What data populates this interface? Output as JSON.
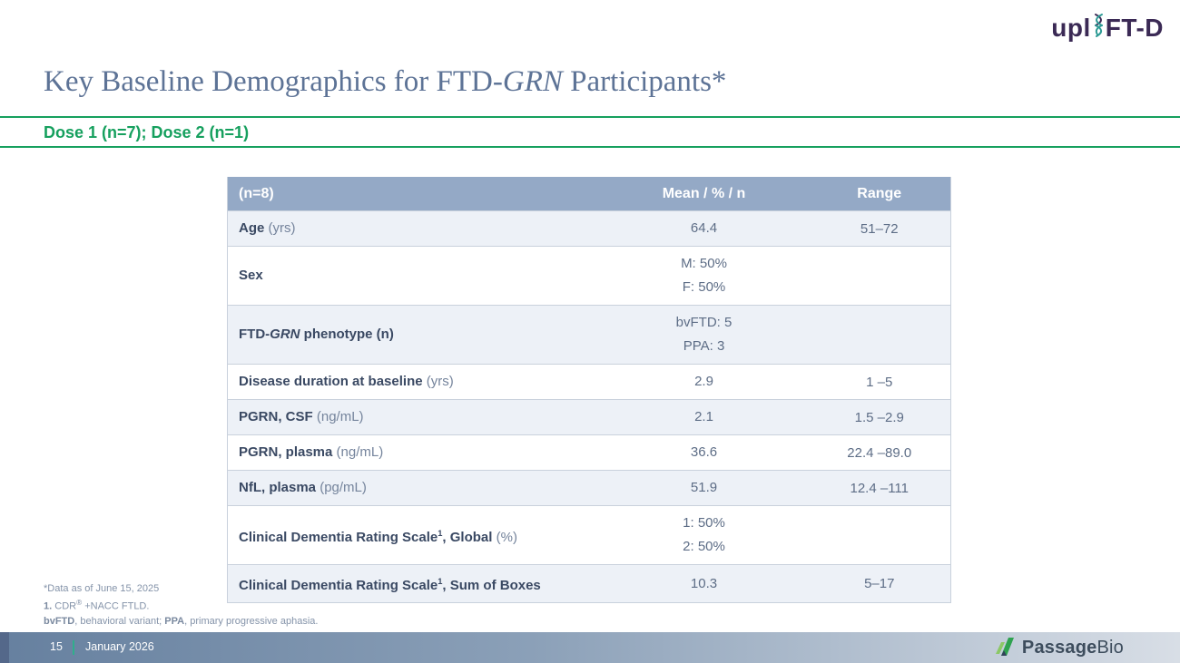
{
  "logo_top_right": {
    "part1": "upl",
    "part2": "FT-D",
    "icon": "dna-helix-icon"
  },
  "title": {
    "prefix": "Key Baseline Demographics for FTD-",
    "italic": "GRN",
    "suffix": " Participants*"
  },
  "subtitle": "Dose 1 (n=7); Dose 2 (n=1)",
  "table": {
    "headers": [
      "(n=8)",
      "Mean / % / n",
      "Range"
    ],
    "rows": [
      {
        "label": [
          {
            "t": "Age",
            "b": true
          },
          {
            "t": " (yrs)"
          }
        ],
        "mean": [
          "64.4"
        ],
        "range": "51–72"
      },
      {
        "label": [
          {
            "t": "Sex",
            "b": true
          }
        ],
        "mean": [
          "M: 50%",
          "F: 50%"
        ],
        "range": ""
      },
      {
        "label": [
          {
            "t": "FTD-",
            "b": true
          },
          {
            "t": "GRN",
            "b": true,
            "i": true
          },
          {
            "t": " phenotype (n)",
            "b": true
          }
        ],
        "mean": [
          "bvFTD: 5",
          "PPA: 3"
        ],
        "range": ""
      },
      {
        "label": [
          {
            "t": "Disease duration at baseline",
            "b": true
          },
          {
            "t": " (yrs)"
          }
        ],
        "mean": [
          "2.9"
        ],
        "range": "1 –5"
      },
      {
        "label": [
          {
            "t": "PGRN, CSF",
            "b": true
          },
          {
            "t": " (ng/mL)"
          }
        ],
        "mean": [
          "2.1"
        ],
        "range": "1.5 –2.9"
      },
      {
        "label": [
          {
            "t": "PGRN, plasma",
            "b": true
          },
          {
            "t": " (ng/mL)"
          }
        ],
        "mean": [
          "36.6"
        ],
        "range": "22.4 –89.0"
      },
      {
        "label": [
          {
            "t": "NfL, plasma",
            "b": true
          },
          {
            "t": " (pg/mL)"
          }
        ],
        "mean": [
          "51.9"
        ],
        "range": "12.4 –111"
      },
      {
        "label": [
          {
            "t": "Clinical Dementia Rating Scale",
            "b": true
          },
          {
            "t": "1",
            "b": true,
            "sup": true
          },
          {
            "t": ", Global",
            "b": true
          },
          {
            "t": " (%)"
          }
        ],
        "mean": [
          "1: 50%",
          "2: 50%"
        ],
        "range": ""
      },
      {
        "label": [
          {
            "t": "Clinical Dementia Rating Scale",
            "b": true
          },
          {
            "t": "1",
            "b": true,
            "sup": true
          },
          {
            "t": ", Sum of Boxes",
            "b": true
          }
        ],
        "mean": [
          "10.3"
        ],
        "range": "5–17"
      }
    ]
  },
  "chart_data": {
    "type": "table",
    "title": "Key Baseline Demographics for FTD-GRN Participants",
    "columns": [
      "(n=8)",
      "Mean / % / n",
      "Range"
    ],
    "rows": [
      [
        "Age (yrs)",
        "64.4",
        "51–72"
      ],
      [
        "Sex",
        "M: 50%; F: 50%",
        ""
      ],
      [
        "FTD-GRN phenotype (n)",
        "bvFTD: 5; PPA: 3",
        ""
      ],
      [
        "Disease duration at baseline (yrs)",
        "2.9",
        "1 –5"
      ],
      [
        "PGRN, CSF (ng/mL)",
        "2.1",
        "1.5 –2.9"
      ],
      [
        "PGRN, plasma (ng/mL)",
        "36.6",
        "22.4 –89.0"
      ],
      [
        "NfL, plasma (pg/mL)",
        "51.9",
        "12.4 –111"
      ],
      [
        "Clinical Dementia Rating Scale1, Global (%)",
        "1: 50%; 2: 50%",
        ""
      ],
      [
        "Clinical Dementia Rating Scale1, Sum of Boxes",
        "10.3",
        "5–17"
      ]
    ]
  },
  "footnotes": [
    [
      {
        "t": "*Data as of June 15, 2025"
      }
    ],
    [
      {
        "t": "1.",
        "b": true
      },
      {
        "t": " CDR"
      },
      {
        "t": "®",
        "sup": true
      },
      {
        "t": " +NACC FTLD."
      }
    ],
    [
      {
        "t": "bvFTD",
        "b": true
      },
      {
        "t": ", behavioral variant; "
      },
      {
        "t": "PPA",
        "b": true
      },
      {
        "t": ", primary progressive aphasia."
      }
    ]
  ],
  "footer": {
    "page_number": "15",
    "date": "January 2026",
    "brand_bold": "Passage",
    "brand_regular": "Bio"
  },
  "colors": {
    "accent_green": "#16a05e",
    "title_blue": "#5d7396",
    "table_header_bg": "#94a9c6",
    "table_row_alt_bg": "#edf1f7",
    "label_text": "#3a4963",
    "value_text": "#5d6d86",
    "footer_gradient_start": "#66809f",
    "footer_gradient_end": "#d8dee6",
    "footer_separator_teal": "#2fae8c",
    "logo_purple": "#3b2a55",
    "logo_teal": "#2c9a94",
    "brand_green_light": "#8bc866",
    "brand_green_dark": "#2ea24f",
    "brand_text": "#3d4d5d"
  }
}
